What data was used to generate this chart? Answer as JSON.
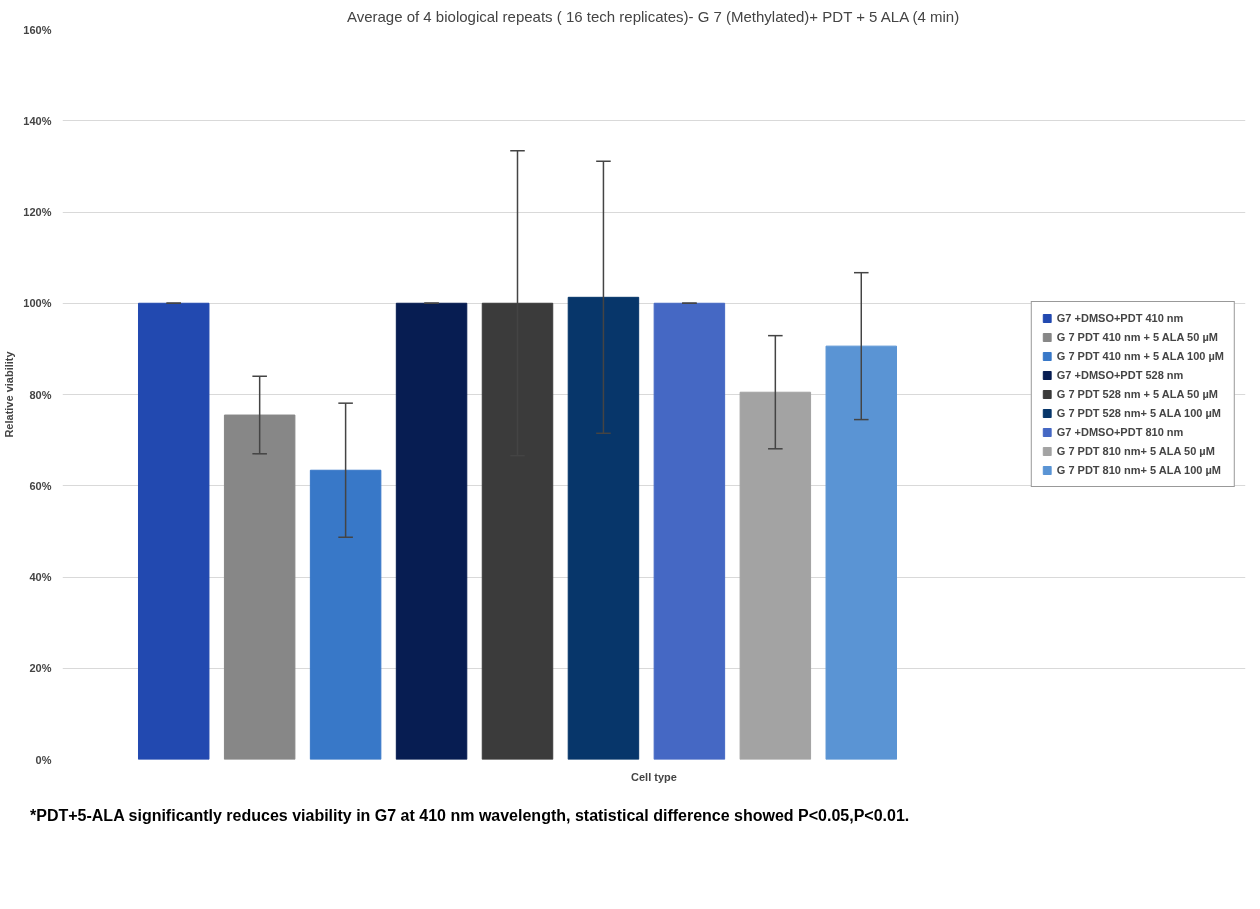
{
  "chart_data": {
    "type": "bar",
    "title": "Average of 4 biological repeats ( 16 tech replicates)- G 7 (Methylated)+ PDT + 5 ALA (4 min)",
    "xlabel": "Cell type",
    "ylabel": "Relative viability",
    "categories": [
      null
    ],
    "series": [
      {
        "name": "G7 +DMSO+PDT 410 nm",
        "color": "#2249b0",
        "values": [
          100
        ],
        "errors": [
          0
        ]
      },
      {
        "name": "G 7 PDT 410 nm + 5 ALA 50 µM",
        "color": "#878787",
        "values": [
          75.5
        ],
        "errors": [
          8.5
        ]
      },
      {
        "name": "G 7 PDT 410 nm + 5 ALA 100 µM",
        "color": "#3878c8",
        "values": [
          63.4
        ],
        "errors": [
          14.7
        ]
      },
      {
        "name": "G7 +DMSO+PDT 528 nm",
        "color": "#071d52",
        "values": [
          100
        ],
        "errors": [
          0
        ]
      },
      {
        "name": "G 7 PDT 528 nm + 5 ALA 50 µM",
        "color": "#3b3b3b",
        "values": [
          100
        ],
        "errors": [
          33.4
        ]
      },
      {
        "name": "G 7 PDT 528 nm+ 5 ALA 100 µM",
        "color": "#07366a",
        "values": [
          101.3
        ],
        "errors": [
          29.8
        ]
      },
      {
        "name": "G7 +DMSO+PDT 810 nm",
        "color": "#4568c4",
        "values": [
          100
        ],
        "errors": [
          0
        ]
      },
      {
        "name": "G 7 PDT 810 nm+ 5 ALA 50 µM",
        "color": "#a3a3a3",
        "values": [
          80.5
        ],
        "errors": [
          12.4
        ]
      },
      {
        "name": "G 7 PDT 810 nm+ 5 ALA 100 µM",
        "color": "#5a94d4",
        "values": [
          90.6
        ],
        "errors": [
          16.1
        ]
      }
    ],
    "ylim": [
      0,
      160
    ],
    "yticks": [
      {
        "value": 0,
        "label": "0%"
      },
      {
        "value": 20,
        "label": "20%"
      },
      {
        "value": 40,
        "label": "40%"
      },
      {
        "value": 60,
        "label": "60%"
      },
      {
        "value": 80,
        "label": "80%"
      },
      {
        "value": 100,
        "label": "100%"
      },
      {
        "value": 120,
        "label": "120%"
      },
      {
        "value": 140,
        "label": "140%"
      },
      {
        "value": 160,
        "label": "160%"
      }
    ],
    "grid": "y",
    "legend": "right",
    "annotations": [
      "*PDT+5-ALA significantly reduces viability in G7 at 410 nm wavelength, statistical difference showed P<0.05,P<0.01."
    ]
  }
}
